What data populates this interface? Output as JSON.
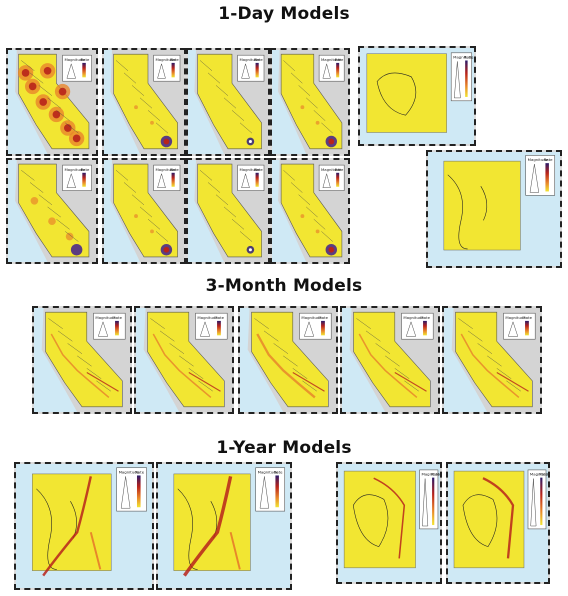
{
  "sections": [
    {
      "title": "1-Day Models"
    },
    {
      "title": "3-Month Models"
    },
    {
      "title": "1-Year Models"
    }
  ],
  "colors": {
    "forecast_low": "#f2e632",
    "forecast_mid": "#e8862a",
    "forecast_high": "#b8231b",
    "ocean": "#cfe9f5",
    "land_outside": "#d4d4d4",
    "panel_border": "#222222"
  },
  "legend_labels": {
    "rate": "Rate",
    "magnitude": "Magnitude"
  },
  "panel_groups": {
    "one_day_california": 8,
    "one_day_australia": 1,
    "one_day_japan": 1,
    "three_month_california": 5,
    "one_year_japan": 2,
    "one_year_australia": 2
  }
}
